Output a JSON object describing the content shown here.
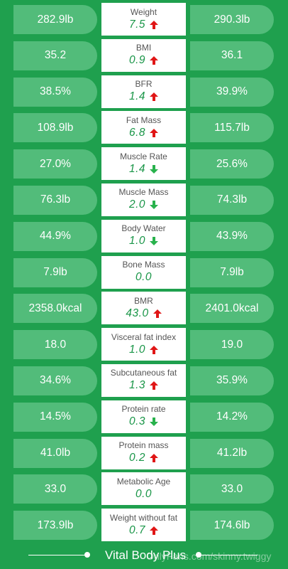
{
  "colors": {
    "background": "#1fa04e",
    "pill": "#52bc7a",
    "delta": "#1a9648",
    "up": "#e01616",
    "down": "#28b24c"
  },
  "rows": [
    {
      "label": "Weight",
      "left": "282.9lb",
      "right": "290.3lb",
      "delta": "7.5",
      "dir": "up"
    },
    {
      "label": "BMI",
      "left": "35.2",
      "right": "36.1",
      "delta": "0.9",
      "dir": "up"
    },
    {
      "label": "BFR",
      "left": "38.5%",
      "right": "39.9%",
      "delta": "1.4",
      "dir": "up"
    },
    {
      "label": "Fat Mass",
      "left": "108.9lb",
      "right": "115.7lb",
      "delta": "6.8",
      "dir": "up"
    },
    {
      "label": "Muscle Rate",
      "left": "27.0%",
      "right": "25.6%",
      "delta": "1.4",
      "dir": "down"
    },
    {
      "label": "Muscle Mass",
      "left": "76.3lb",
      "right": "74.3lb",
      "delta": "2.0",
      "dir": "down"
    },
    {
      "label": "Body Water",
      "left": "44.9%",
      "right": "43.9%",
      "delta": "1.0",
      "dir": "down"
    },
    {
      "label": "Bone Mass",
      "left": "7.9lb",
      "right": "7.9lb",
      "delta": "0.0",
      "dir": "none"
    },
    {
      "label": "BMR",
      "left": "2358.0kcal",
      "right": "2401.0kcal",
      "delta": "43.0",
      "dir": "up"
    },
    {
      "label": "Visceral fat index",
      "left": "18.0",
      "right": "19.0",
      "delta": "1.0",
      "dir": "up"
    },
    {
      "label": "Subcutaneous fat",
      "left": "34.6%",
      "right": "35.9%",
      "delta": "1.3",
      "dir": "up"
    },
    {
      "label": "Protein rate",
      "left": "14.5%",
      "right": "14.2%",
      "delta": "0.3",
      "dir": "down"
    },
    {
      "label": "Protein mass",
      "left": "41.0lb",
      "right": "41.2lb",
      "delta": "0.2",
      "dir": "up"
    },
    {
      "label": "Metabolic Age",
      "left": "33.0",
      "right": "33.0",
      "delta": "0.0",
      "dir": "none"
    },
    {
      "label": "Weight without fat",
      "left": "173.9lb",
      "right": "174.6lb",
      "delta": "0.7",
      "dir": "up"
    }
  ],
  "footer": {
    "brand": "Vital Body Plus"
  },
  "watermark": "OnlyFans.com/skinny.twiggy"
}
